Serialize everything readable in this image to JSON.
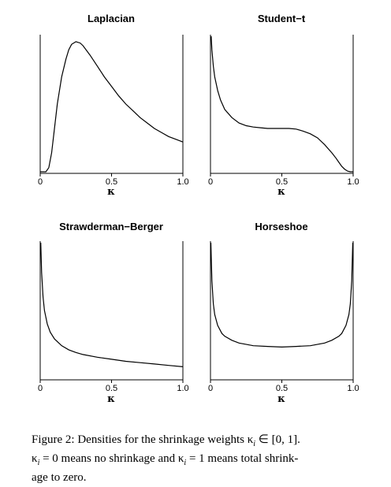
{
  "chart_data": [
    {
      "type": "line",
      "title": "Laplacian",
      "xlabel": "κ",
      "xlim": [
        0,
        1
      ],
      "xticks": [
        "0",
        "0.5",
        "1.0"
      ],
      "series": [
        {
          "x": [
            0.0,
            0.02,
            0.04,
            0.06,
            0.08,
            0.1,
            0.12,
            0.15,
            0.18,
            0.2,
            0.22,
            0.25,
            0.28,
            0.3,
            0.35,
            0.4,
            0.45,
            0.5,
            0.55,
            0.6,
            0.65,
            0.7,
            0.75,
            0.8,
            0.85,
            0.9,
            0.95,
            1.0
          ],
          "y": [
            0.0,
            0.0,
            0.0,
            0.03,
            0.14,
            0.32,
            0.5,
            0.7,
            0.83,
            0.9,
            0.94,
            0.96,
            0.95,
            0.93,
            0.86,
            0.78,
            0.7,
            0.63,
            0.56,
            0.5,
            0.45,
            0.4,
            0.36,
            0.32,
            0.29,
            0.26,
            0.24,
            0.22
          ]
        }
      ]
    },
    {
      "type": "line",
      "title": "Student−t",
      "xlabel": "κ",
      "xlim": [
        0,
        1
      ],
      "xticks": [
        "0",
        "0.5",
        "1.0"
      ],
      "series": [
        {
          "x": [
            0.005,
            0.01,
            0.02,
            0.03,
            0.05,
            0.07,
            0.1,
            0.15,
            0.2,
            0.25,
            0.3,
            0.35,
            0.4,
            0.45,
            0.5,
            0.55,
            0.6,
            0.65,
            0.7,
            0.75,
            0.8,
            0.85,
            0.88,
            0.9,
            0.92,
            0.94,
            0.96,
            0.98,
            1.0
          ],
          "y": [
            1.0,
            0.9,
            0.78,
            0.7,
            0.6,
            0.53,
            0.46,
            0.4,
            0.36,
            0.34,
            0.33,
            0.325,
            0.32,
            0.32,
            0.32,
            0.32,
            0.315,
            0.3,
            0.28,
            0.25,
            0.2,
            0.14,
            0.1,
            0.07,
            0.04,
            0.02,
            0.005,
            0.0,
            0.0
          ]
        }
      ]
    },
    {
      "type": "line",
      "title": "Strawderman−Berger",
      "xlabel": "κ",
      "xlim": [
        0,
        1
      ],
      "xticks": [
        "0",
        "0.5",
        "1.0"
      ],
      "series": [
        {
          "x": [
            0.004,
            0.01,
            0.02,
            0.03,
            0.05,
            0.07,
            0.1,
            0.15,
            0.2,
            0.25,
            0.3,
            0.4,
            0.5,
            0.6,
            0.7,
            0.8,
            0.9,
            1.0
          ],
          "y": [
            1.0,
            0.78,
            0.6,
            0.5,
            0.4,
            0.34,
            0.29,
            0.24,
            0.21,
            0.19,
            0.175,
            0.155,
            0.14,
            0.125,
            0.115,
            0.105,
            0.095,
            0.085
          ]
        }
      ]
    },
    {
      "type": "line",
      "title": "Horseshoe",
      "xlabel": "κ",
      "xlim": [
        0,
        1
      ],
      "xticks": [
        "0",
        "0.5",
        "1.0"
      ],
      "series": [
        {
          "x": [
            0.003,
            0.01,
            0.02,
            0.03,
            0.05,
            0.08,
            0.1,
            0.15,
            0.2,
            0.3,
            0.4,
            0.5,
            0.6,
            0.7,
            0.8,
            0.85,
            0.9,
            0.92,
            0.95,
            0.97,
            0.98,
            0.99,
            0.997
          ],
          "y": [
            1.0,
            0.72,
            0.55,
            0.47,
            0.39,
            0.33,
            0.31,
            0.28,
            0.26,
            0.24,
            0.235,
            0.23,
            0.235,
            0.24,
            0.26,
            0.28,
            0.31,
            0.33,
            0.39,
            0.47,
            0.55,
            0.72,
            1.0
          ]
        }
      ]
    }
  ],
  "caption": {
    "line1": "Figure 2:  Densities for the shrinkage weights κ",
    "line1_sub": "i",
    "line1_rest": " ∈ [0, 1].",
    "line2_a": "κ",
    "line2_sub": "i",
    "line2_b": " = 0 means no shrinkage and κ",
    "line2_sub2": "i",
    "line2_c": " = 1 means total shrink-",
    "line3": "age to zero."
  }
}
